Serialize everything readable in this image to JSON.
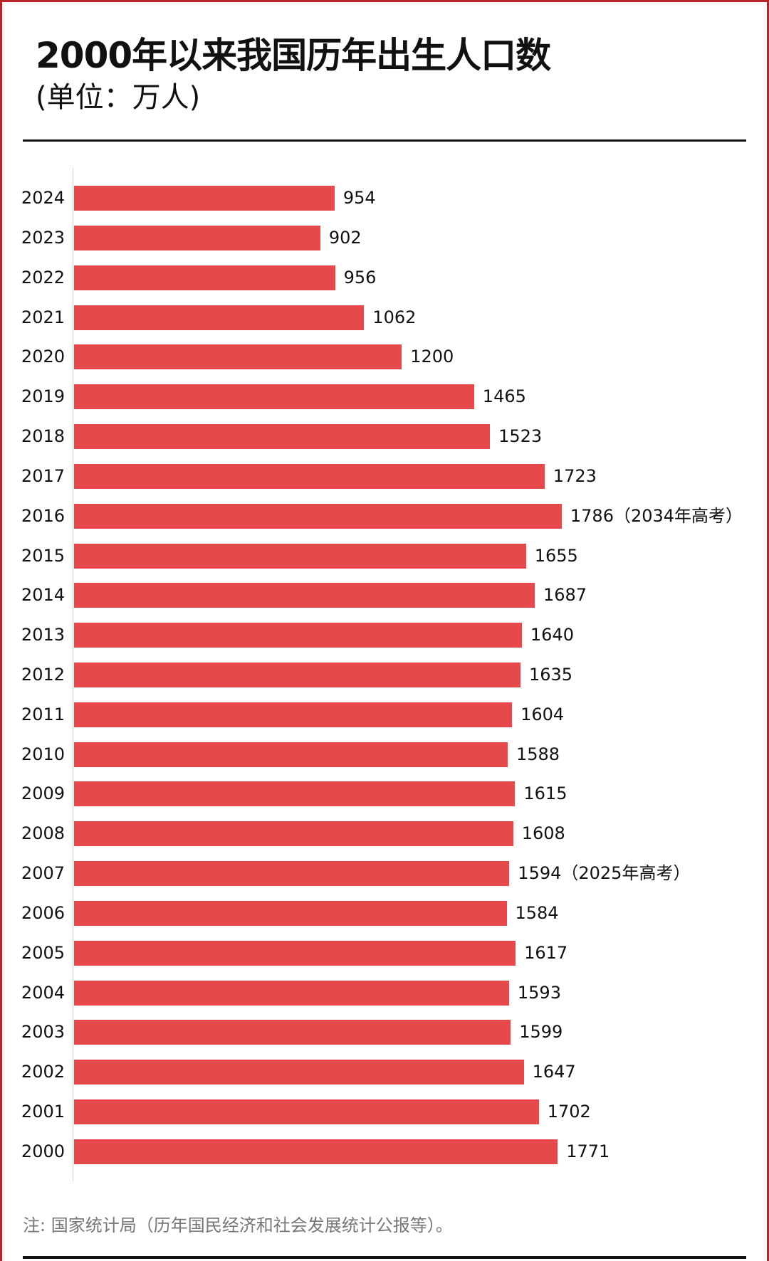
{
  "header": {
    "title": "2000年以来我国历年出生人口数",
    "subtitle": "(单位：万人)"
  },
  "footnote": "注: 国家统计局（历年国民经济和社会发展统计公报等）。",
  "colors": {
    "bar": "#e5494b",
    "frame": "#b8242a",
    "text": "#111111",
    "note": "#777777"
  },
  "chart_data": {
    "type": "bar",
    "orientation": "horizontal",
    "title": "2000年以来我国历年出生人口数",
    "subtitle": "(单位：万人)",
    "xlabel": "",
    "ylabel": "",
    "unit": "万人",
    "grid": false,
    "legend": null,
    "categories": [
      "2024",
      "2023",
      "2022",
      "2021",
      "2020",
      "2019",
      "2018",
      "2017",
      "2016",
      "2015",
      "2014",
      "2013",
      "2012",
      "2011",
      "2010",
      "2009",
      "2008",
      "2007",
      "2006",
      "2005",
      "2004",
      "2003",
      "2002",
      "2001",
      "2000"
    ],
    "values": [
      954,
      902,
      956,
      1062,
      1200,
      1465,
      1523,
      1723,
      1786,
      1655,
      1687,
      1640,
      1635,
      1604,
      1588,
      1615,
      1608,
      1594,
      1584,
      1617,
      1593,
      1599,
      1647,
      1702,
      1771
    ],
    "annotations": [
      {
        "category": "2016",
        "text": "（2034年高考）"
      },
      {
        "category": "2007",
        "text": "（2025年高考）"
      }
    ],
    "source_note": "注: 国家统计局（历年国民经济和社会发展统计公报等）。"
  },
  "rows": [
    {
      "year": "2024",
      "value": "954",
      "label": "954"
    },
    {
      "year": "2023",
      "value": "902",
      "label": "902"
    },
    {
      "year": "2022",
      "value": "956",
      "label": "956"
    },
    {
      "year": "2021",
      "value": "1062",
      "label": "1062"
    },
    {
      "year": "2020",
      "value": "1200",
      "label": "1200"
    },
    {
      "year": "2019",
      "value": "1465",
      "label": "1465"
    },
    {
      "year": "2018",
      "value": "1523",
      "label": "1523"
    },
    {
      "year": "2017",
      "value": "1723",
      "label": "1723"
    },
    {
      "year": "2016",
      "value": "1786",
      "label": "1786（2034年高考）"
    },
    {
      "year": "2015",
      "value": "1655",
      "label": "1655"
    },
    {
      "year": "2014",
      "value": "1687",
      "label": "1687"
    },
    {
      "year": "2013",
      "value": "1640",
      "label": "1640"
    },
    {
      "year": "2012",
      "value": "1635",
      "label": "1635"
    },
    {
      "year": "2011",
      "value": "1604",
      "label": "1604"
    },
    {
      "year": "2010",
      "value": "1588",
      "label": "1588"
    },
    {
      "year": "2009",
      "value": "1615",
      "label": "1615"
    },
    {
      "year": "2008",
      "value": "1608",
      "label": "1608"
    },
    {
      "year": "2007",
      "value": "1594",
      "label": "1594（2025年高考）"
    },
    {
      "year": "2006",
      "value": "1584",
      "label": "1584"
    },
    {
      "year": "2005",
      "value": "1617",
      "label": "1617"
    },
    {
      "year": "2004",
      "value": "1593",
      "label": "1593"
    },
    {
      "year": "2003",
      "value": "1599",
      "label": "1599"
    },
    {
      "year": "2002",
      "value": "1647",
      "label": "1647"
    },
    {
      "year": "2001",
      "value": "1702",
      "label": "1702"
    },
    {
      "year": "2000",
      "value": "1771",
      "label": "1771"
    }
  ]
}
